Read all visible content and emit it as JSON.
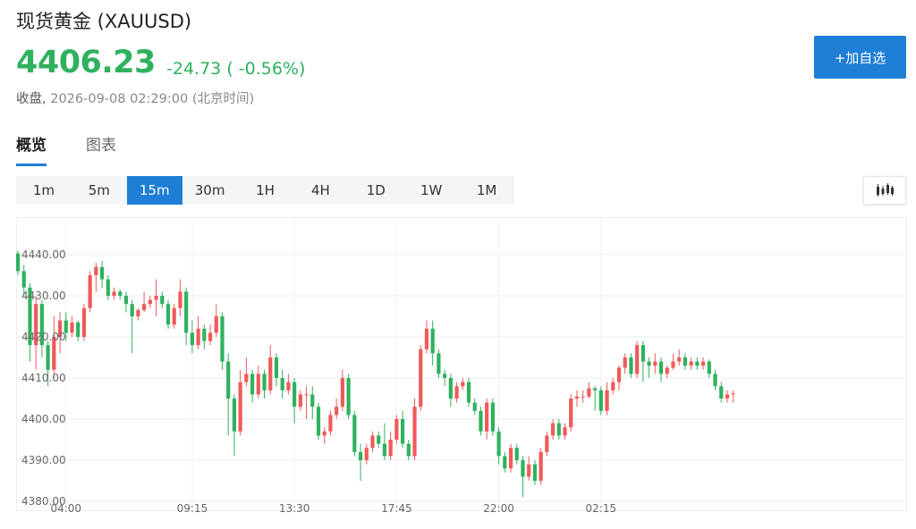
{
  "header": {
    "title": "现货黄金 (XAUUSD)",
    "price": "4406.23",
    "change": "-24.73 ( -0.56%)",
    "close_label": "收盘,",
    "close_time": "2026-09-08 02:29:00 (北京时间)",
    "add_button": "+加自选"
  },
  "tabs": [
    {
      "label": "概览",
      "active": true
    },
    {
      "label": "图表",
      "active": false
    }
  ],
  "periods": [
    {
      "label": "1m",
      "active": false
    },
    {
      "label": "5m",
      "active": false
    },
    {
      "label": "15m",
      "active": true
    },
    {
      "label": "30m",
      "active": false
    },
    {
      "label": "1H",
      "active": false
    },
    {
      "label": "4H",
      "active": false
    },
    {
      "label": "1D",
      "active": false
    },
    {
      "label": "1W",
      "active": false
    },
    {
      "label": "1M",
      "active": false
    }
  ],
  "icons": {
    "chart_type": "candlestick-icon"
  },
  "colors": {
    "up": "#f05a5a",
    "down": "#2fb15e",
    "price": "#2fb15e",
    "accent": "#1f7ed6"
  },
  "chart_data": {
    "type": "candlestick",
    "y_ticks": [
      "4440.00",
      "4430.00",
      "4420.00",
      "4410.00",
      "4400.00",
      "4390.00",
      "4380.00"
    ],
    "ylim": [
      4380,
      4440
    ],
    "x_ticks": [
      {
        "label": "04:00",
        "index": 8
      },
      {
        "label": "09:15",
        "index": 29
      },
      {
        "label": "13:30",
        "index": 46
      },
      {
        "label": "17:45",
        "index": 63
      },
      {
        "label": "22:00",
        "index": 80
      },
      {
        "label": "02:15",
        "index": 97
      }
    ],
    "grid": true,
    "candles": [
      [
        4440.3,
        4436.0,
        4441.0,
        4435.0
      ],
      [
        4436.0,
        4432.0,
        4437.5,
        4430.0
      ],
      [
        4432.0,
        4418.0,
        4433.0,
        4414.0
      ],
      [
        4418.0,
        4428.0,
        4430.0,
        4412.0
      ],
      [
        4428.0,
        4418.0,
        4429.0,
        4415.0
      ],
      [
        4418.0,
        4412.0,
        4419.0,
        4408.0
      ],
      [
        4412.0,
        4420.0,
        4425.0,
        4410.0
      ],
      [
        4420.0,
        4424.0,
        4426.0,
        4416.0
      ],
      [
        4424.0,
        4421.0,
        4426.0,
        4419.0
      ],
      [
        4421.0,
        4423.5,
        4425.0,
        4420.0
      ],
      [
        4423.5,
        4420.0,
        4424.0,
        4419.0
      ],
      [
        4420.0,
        4427.0,
        4428.0,
        4419.0
      ],
      [
        4427.0,
        4435.0,
        4436.0,
        4426.0
      ],
      [
        4435.0,
        4437.0,
        4438.0,
        4431.0
      ],
      [
        4437.0,
        4434.0,
        4438.5,
        4432.0
      ],
      [
        4434.0,
        4430.0,
        4435.0,
        4429.0
      ],
      [
        4430.0,
        4431.0,
        4432.0,
        4429.0
      ],
      [
        4431.0,
        4430.0,
        4431.5,
        4429.0
      ],
      [
        4430.0,
        4428.0,
        4431.0,
        4426.0
      ],
      [
        4428.0,
        4425.0,
        4429.0,
        4416.0
      ],
      [
        4425.0,
        4426.5,
        4427.0,
        4424.0
      ],
      [
        4426.5,
        4428.0,
        4431.0,
        4426.0
      ],
      [
        4428.0,
        4429.0,
        4430.0,
        4427.0
      ],
      [
        4429.0,
        4430.0,
        4434.0,
        4425.0
      ],
      [
        4430.0,
        4428.0,
        4431.0,
        4427.0
      ],
      [
        4428.0,
        4423.0,
        4429.0,
        4422.0
      ],
      [
        4423.0,
        4427.0,
        4428.0,
        4422.0
      ],
      [
        4427.0,
        4431.0,
        4434.0,
        4425.0
      ],
      [
        4431.0,
        4421.0,
        4432.0,
        4418.0
      ],
      [
        4421.0,
        4418.0,
        4424.0,
        4416.0
      ],
      [
        4418.0,
        4422.0,
        4425.0,
        4417.0
      ],
      [
        4422.0,
        4419.0,
        4423.0,
        4417.0
      ],
      [
        4419.0,
        4421.0,
        4423.0,
        4418.0
      ],
      [
        4421.0,
        4425.0,
        4428.0,
        4420.0
      ],
      [
        4425.0,
        4414.0,
        4426.0,
        4412.0
      ],
      [
        4414.0,
        4405.0,
        4416.0,
        4396.0
      ],
      [
        4405.0,
        4397.0,
        4406.0,
        4391.0
      ],
      [
        4397.0,
        4409.0,
        4412.0,
        4396.0
      ],
      [
        4409.0,
        4411.0,
        4415.0,
        4408.0
      ],
      [
        4411.0,
        4406.0,
        4412.0,
        4404.0
      ],
      [
        4406.0,
        4411.0,
        4413.0,
        4405.0
      ],
      [
        4411.0,
        4407.0,
        4412.0,
        4405.0
      ],
      [
        4407.0,
        4415.0,
        4418.0,
        4406.0
      ],
      [
        4415.0,
        4410.0,
        4416.0,
        4408.0
      ],
      [
        4410.0,
        4407.0,
        4412.0,
        4405.0
      ],
      [
        4407.0,
        4409.0,
        4411.0,
        4406.0
      ],
      [
        4409.0,
        4403.0,
        4410.0,
        4399.0
      ],
      [
        4403.0,
        4406.0,
        4407.0,
        4402.0
      ],
      [
        4406.0,
        4406.0,
        4408.0,
        4400.0
      ],
      [
        4406.0,
        4403.0,
        4408.0,
        4400.0
      ],
      [
        4403.0,
        4396.0,
        4404.0,
        4395.0
      ],
      [
        4396.0,
        4397.0,
        4398.0,
        4394.0
      ],
      [
        4397.0,
        4401.0,
        4402.0,
        4396.0
      ],
      [
        4401.0,
        4403.0,
        4405.0,
        4400.0
      ],
      [
        4403.0,
        4410.0,
        4412.0,
        4402.0
      ],
      [
        4410.0,
        4401.0,
        4411.0,
        4400.0
      ],
      [
        4401.0,
        4392.0,
        4402.0,
        4391.0
      ],
      [
        4392.0,
        4390.0,
        4394.0,
        4385.0
      ],
      [
        4390.0,
        4393.0,
        4394.0,
        4389.0
      ],
      [
        4393.0,
        4396.0,
        4397.0,
        4392.0
      ],
      [
        4396.0,
        4394.0,
        4397.0,
        4393.0
      ],
      [
        4394.0,
        4391.0,
        4399.0,
        4390.0
      ],
      [
        4391.0,
        4395.0,
        4397.0,
        4390.0
      ],
      [
        4395.0,
        4400.0,
        4401.0,
        4394.0
      ],
      [
        4400.0,
        4394.0,
        4402.0,
        4393.0
      ],
      [
        4394.0,
        4391.0,
        4395.0,
        4390.0
      ],
      [
        4391.0,
        4403.0,
        4405.0,
        4390.0
      ],
      [
        4403.0,
        4417.0,
        4418.0,
        4402.0
      ],
      [
        4417.0,
        4422.0,
        4424.0,
        4416.0
      ],
      [
        4422.0,
        4416.0,
        4424.0,
        4413.0
      ],
      [
        4416.0,
        4411.0,
        4417.0,
        4410.0
      ],
      [
        4411.0,
        4410.0,
        4412.0,
        4408.0
      ],
      [
        4410.0,
        4405.0,
        4411.0,
        4403.0
      ],
      [
        4405.0,
        4408.0,
        4409.0,
        4404.0
      ],
      [
        4408.0,
        4409.0,
        4410.0,
        4407.0
      ],
      [
        4409.0,
        4404.0,
        4410.0,
        4403.0
      ],
      [
        4404.0,
        4402.0,
        4405.0,
        4401.0
      ],
      [
        4402.0,
        4397.0,
        4403.0,
        4396.0
      ],
      [
        4397.0,
        4404.0,
        4405.0,
        4395.0
      ],
      [
        4404.0,
        4397.0,
        4405.0,
        4396.0
      ],
      [
        4397.0,
        4391.0,
        4398.0,
        4389.0
      ],
      [
        4391.0,
        4388.0,
        4392.0,
        4387.0
      ],
      [
        4388.0,
        4393.0,
        4394.0,
        4387.0
      ],
      [
        4393.0,
        4390.0,
        4394.0,
        4389.0
      ],
      [
        4390.0,
        4386.0,
        4391.0,
        4381.0
      ],
      [
        4386.0,
        4389.0,
        4391.0,
        4385.0
      ],
      [
        4389.0,
        4385.0,
        4390.0,
        4384.0
      ],
      [
        4385.0,
        4392.0,
        4393.0,
        4384.0
      ],
      [
        4392.0,
        4396.0,
        4397.0,
        4391.0
      ],
      [
        4396.0,
        4399.0,
        4400.0,
        4395.0
      ],
      [
        4399.0,
        4396.0,
        4400.0,
        4395.0
      ],
      [
        4396.0,
        4398.0,
        4399.0,
        4395.0
      ],
      [
        4398.0,
        4405.0,
        4406.0,
        4397.0
      ],
      [
        4405.0,
        4405.5,
        4407.0,
        4403.0
      ],
      [
        4405.5,
        4405.5,
        4407.0,
        4404.0
      ],
      [
        4405.5,
        4407.5,
        4409.0,
        4405.0
      ],
      [
        4407.5,
        4407.0,
        4408.0,
        4402.0
      ],
      [
        4407.0,
        4402.0,
        4408.0,
        4401.0
      ],
      [
        4402.0,
        4407.0,
        4409.0,
        4401.0
      ],
      [
        4407.0,
        4409.0,
        4410.0,
        4406.0
      ],
      [
        4409.0,
        4412.5,
        4413.0,
        4407.0
      ],
      [
        4412.5,
        4415.0,
        4416.0,
        4411.0
      ],
      [
        4415.0,
        4411.0,
        4416.0,
        4410.0
      ],
      [
        4411.0,
        4418.0,
        4419.0,
        4410.0
      ],
      [
        4418.0,
        4414.0,
        4419.0,
        4409.0
      ],
      [
        4414.0,
        4413.0,
        4415.0,
        4410.0
      ],
      [
        4413.0,
        4414.0,
        4416.0,
        4411.0
      ],
      [
        4414.0,
        4411.0,
        4415.0,
        4409.0
      ],
      [
        4411.0,
        4412.5,
        4413.0,
        4410.0
      ],
      [
        4412.5,
        4414.0,
        4416.0,
        4412.0
      ],
      [
        4414.0,
        4415.0,
        4417.0,
        4413.0
      ],
      [
        4415.0,
        4413.0,
        4416.0,
        4412.0
      ],
      [
        4413.0,
        4414.0,
        4415.0,
        4412.0
      ],
      [
        4414.0,
        4413.0,
        4415.0,
        4412.0
      ],
      [
        4413.0,
        4414.0,
        4415.0,
        4412.0
      ],
      [
        4414.0,
        4411.0,
        4414.5,
        4410.0
      ],
      [
        4411.0,
        4408.0,
        4412.0,
        4407.0
      ],
      [
        4408.0,
        4405.0,
        4409.0,
        4404.0
      ],
      [
        4405.0,
        4406.0,
        4407.0,
        4404.0
      ],
      [
        4406.0,
        4406.23,
        4407.0,
        4404.0
      ]
    ]
  }
}
